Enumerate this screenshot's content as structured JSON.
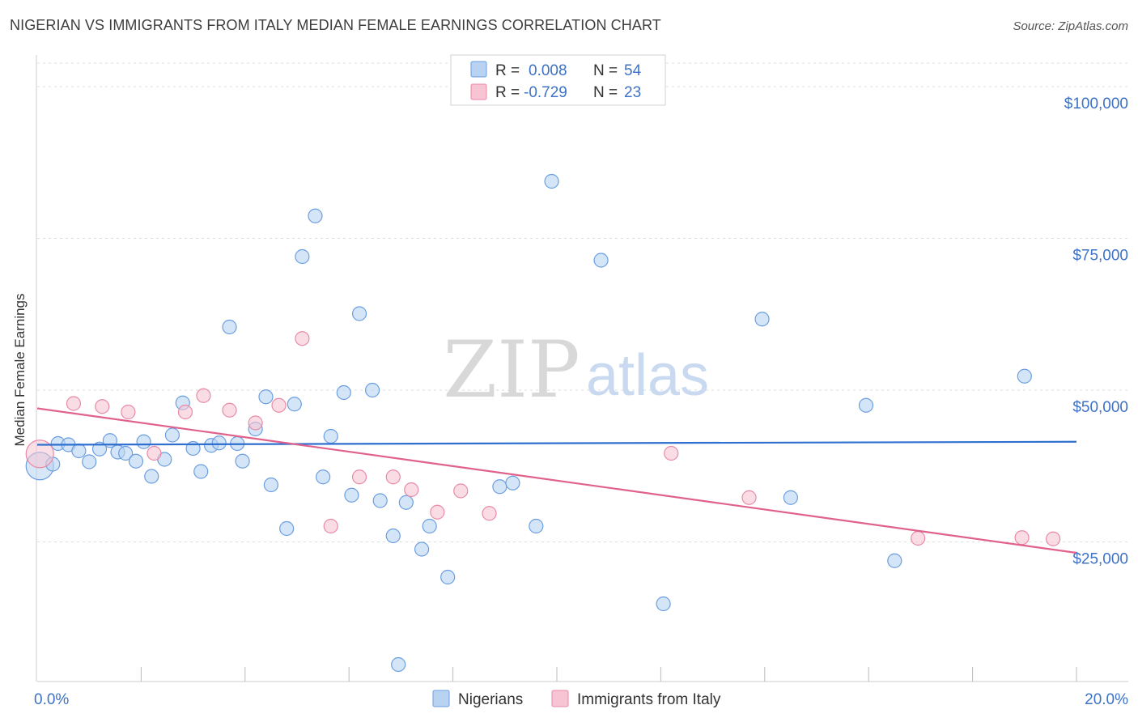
{
  "header": {
    "title": "NIGERIAN VS IMMIGRANTS FROM ITALY MEDIAN FEMALE EARNINGS CORRELATION CHART",
    "source": "Source: ZipAtlas.com"
  },
  "watermark": {
    "part1": "ZIP",
    "part2": "atlas"
  },
  "colors": {
    "nigerians_fill": "#b8d3f2",
    "nigerians_stroke": "#6b9ee0",
    "nigerians_line": "#2f6fd0",
    "italy_fill": "#f7c4d3",
    "italy_stroke": "#e88aa7",
    "italy_line": "#e0628c",
    "tick_text": "#3d72c6",
    "grid": "#dddddd"
  },
  "legend": {
    "rows": [
      {
        "r_label": "R =",
        "r_value": "0.008",
        "n_label": "N =",
        "n_value": "54"
      },
      {
        "r_label": "R =",
        "r_value": "-0.729",
        "n_label": "N =",
        "n_value": "23"
      }
    ]
  },
  "chart_data": {
    "type": "scatter",
    "ylabel": "Median Female Earnings",
    "xlim": [
      0,
      20
    ],
    "ylim": [
      2000,
      106000
    ],
    "x_tick_labels": {
      "left": "0.0%",
      "right": "20.0%"
    },
    "y_ticks": [
      {
        "value": 25000,
        "label": "$25,000"
      },
      {
        "value": 50000,
        "label": "$50,000"
      },
      {
        "value": 75000,
        "label": "$75,000"
      },
      {
        "value": 100000,
        "label": "$100,000"
      }
    ],
    "grid": true,
    "legend_position": "top-center",
    "series": [
      {
        "name": "Nigerians",
        "trend": {
          "x": [
            0,
            20
          ],
          "y": [
            41000,
            41500
          ]
        },
        "points": [
          [
            0.05,
            37500
          ],
          [
            0.3,
            37800
          ],
          [
            0.4,
            41200
          ],
          [
            0.6,
            41000
          ],
          [
            0.8,
            40000
          ],
          [
            1.0,
            38200
          ],
          [
            1.2,
            40300
          ],
          [
            1.4,
            41700
          ],
          [
            1.55,
            39800
          ],
          [
            1.7,
            39600
          ],
          [
            1.9,
            38300
          ],
          [
            2.05,
            41500
          ],
          [
            2.2,
            35800
          ],
          [
            2.45,
            38600
          ],
          [
            2.6,
            42600
          ],
          [
            2.8,
            47900
          ],
          [
            3.0,
            40400
          ],
          [
            3.15,
            36600
          ],
          [
            3.35,
            40900
          ],
          [
            3.5,
            41300
          ],
          [
            3.7,
            60400
          ],
          [
            3.85,
            41200
          ],
          [
            3.95,
            38300
          ],
          [
            4.2,
            43600
          ],
          [
            4.4,
            48900
          ],
          [
            4.5,
            34400
          ],
          [
            4.8,
            27200
          ],
          [
            4.95,
            47700
          ],
          [
            5.1,
            72000
          ],
          [
            5.35,
            78700
          ],
          [
            5.5,
            35700
          ],
          [
            5.65,
            42400
          ],
          [
            5.9,
            49600
          ],
          [
            6.05,
            32700
          ],
          [
            6.2,
            62600
          ],
          [
            6.45,
            50000
          ],
          [
            6.6,
            31800
          ],
          [
            6.85,
            26000
          ],
          [
            6.95,
            4800
          ],
          [
            7.1,
            31500
          ],
          [
            7.4,
            23800
          ],
          [
            7.55,
            27600
          ],
          [
            7.9,
            19200
          ],
          [
            8.9,
            34100
          ],
          [
            9.15,
            34700
          ],
          [
            9.6,
            27600
          ],
          [
            9.9,
            84400
          ],
          [
            10.85,
            71400
          ],
          [
            12.05,
            14800
          ],
          [
            13.95,
            61700
          ],
          [
            14.5,
            32300
          ],
          [
            15.95,
            47500
          ],
          [
            16.5,
            21900
          ],
          [
            19.0,
            52300
          ]
        ]
      },
      {
        "name": "Immigrants from Italy",
        "trend": {
          "x": [
            0,
            20
          ],
          "y": [
            47000,
            23200
          ]
        },
        "points": [
          [
            0.05,
            39500
          ],
          [
            0.7,
            47800
          ],
          [
            1.25,
            47300
          ],
          [
            1.75,
            46400
          ],
          [
            2.25,
            39600
          ],
          [
            2.85,
            46400
          ],
          [
            3.2,
            49100
          ],
          [
            3.7,
            46700
          ],
          [
            4.2,
            44600
          ],
          [
            4.65,
            47500
          ],
          [
            5.1,
            58500
          ],
          [
            5.65,
            27600
          ],
          [
            6.2,
            35700
          ],
          [
            6.85,
            35700
          ],
          [
            7.2,
            33600
          ],
          [
            7.7,
            29900
          ],
          [
            8.15,
            33400
          ],
          [
            8.7,
            29700
          ],
          [
            12.2,
            39600
          ],
          [
            13.7,
            32300
          ],
          [
            16.95,
            25600
          ],
          [
            18.95,
            25700
          ],
          [
            19.55,
            25500
          ]
        ]
      }
    ]
  }
}
